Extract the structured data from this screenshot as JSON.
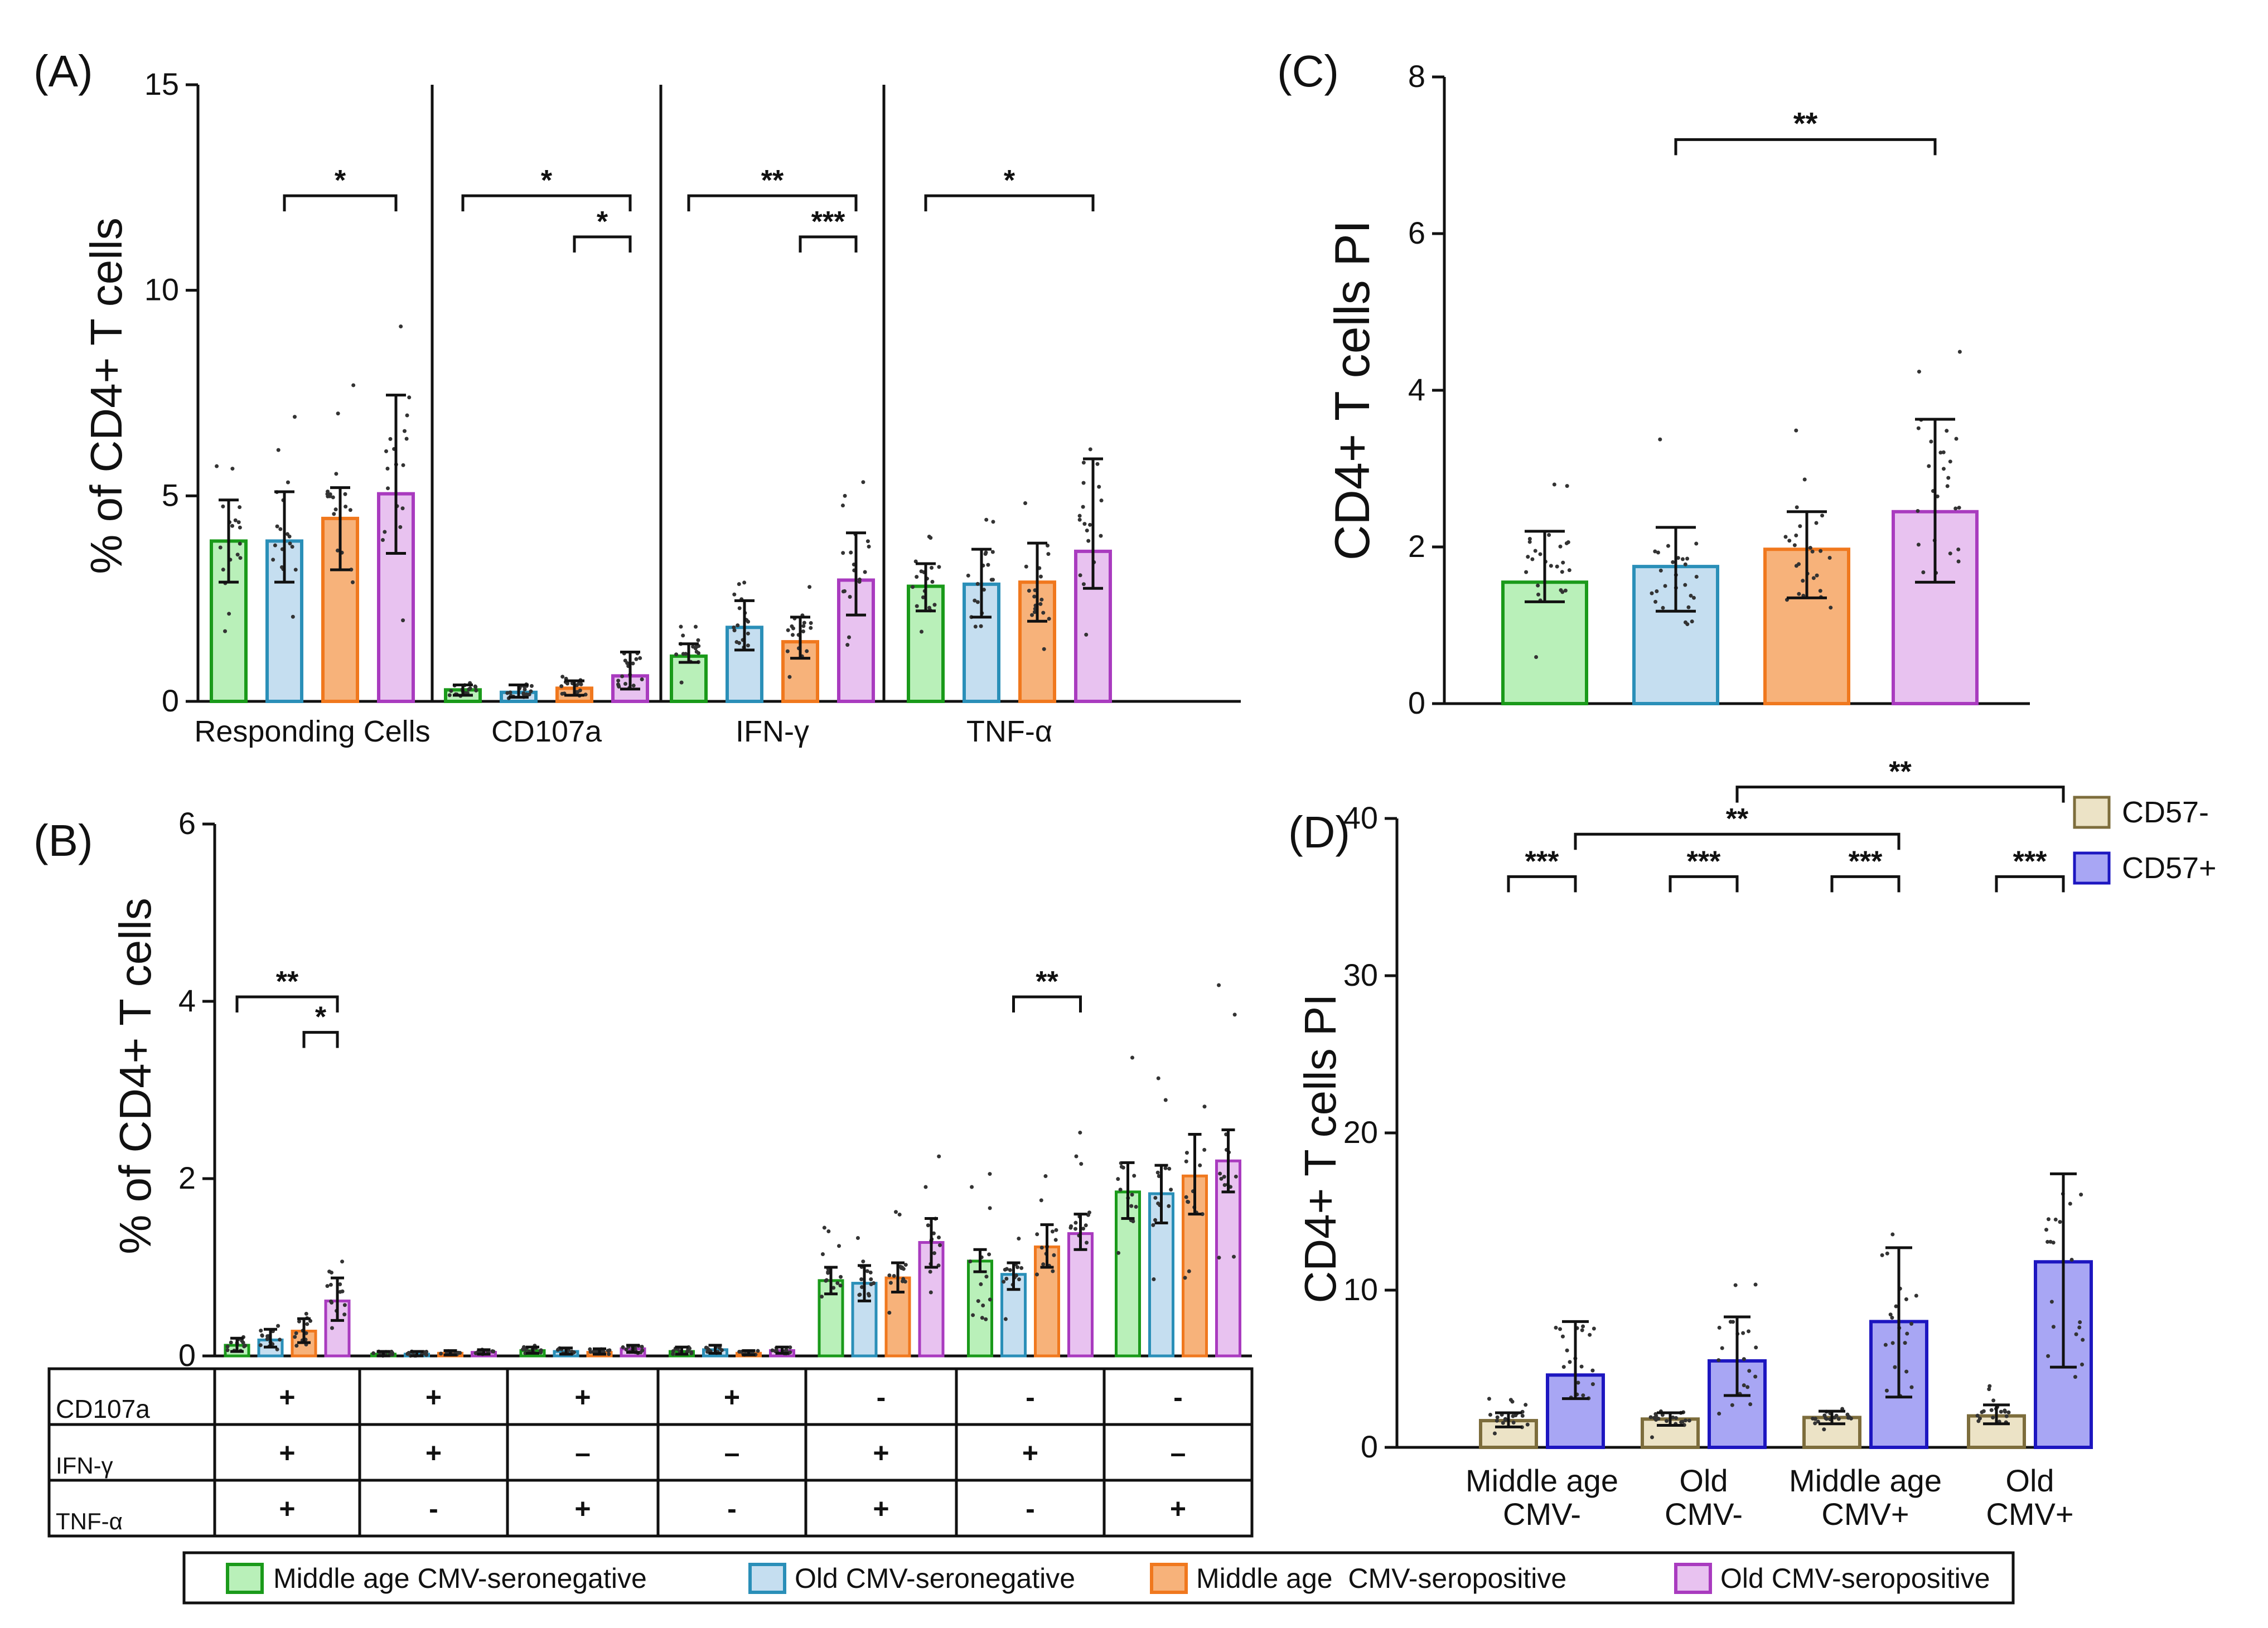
{
  "colors": {
    "ms": "#b9f0b9",
    "ms_e": "#1a9a1a",
    "os": "#c5def0",
    "os_e": "#2a8fb8",
    "mp": "#f7b27a",
    "mp_e": "#f0781e",
    "op": "#e8c2f0",
    "op_e": "#a93bbf",
    "neg": "#ece3c6",
    "neg_e": "#7d6d3c",
    "pos": "#a8a6f4",
    "pos_e": "#1d16c0"
  },
  "legend": {
    "items": [
      "Middle age CMV-seronegative",
      "Old CMV-seronegative",
      "Middle age  CMV-seropositive",
      "Old CMV-seropositive"
    ]
  },
  "chart_data": [
    {
      "id": "A",
      "type": "bar",
      "panel_label": "(A)",
      "ylabel": "% of CD4+ T cells",
      "ylim": [
        0,
        15
      ],
      "yticks": [
        0,
        5,
        10,
        15
      ],
      "groups": [
        {
          "label": "Responding Cells",
          "values": [
            3.9,
            3.9,
            4.45,
            5.05
          ],
          "err_low": [
            2.9,
            2.9,
            3.2,
            3.6
          ],
          "err_high": [
            4.9,
            5.1,
            5.2,
            7.45
          ]
        },
        {
          "label": "CD107a",
          "values": [
            0.28,
            0.22,
            0.32,
            0.62
          ],
          "err_low": [
            0.15,
            0.1,
            0.15,
            0.3
          ],
          "err_high": [
            0.4,
            0.4,
            0.5,
            1.2
          ]
        },
        {
          "label": "IFN-γ",
          "values": [
            1.1,
            1.8,
            1.45,
            2.95
          ],
          "err_low": [
            0.95,
            1.25,
            1.05,
            2.1
          ],
          "err_high": [
            1.4,
            2.45,
            2.05,
            4.1
          ]
        },
        {
          "label": "TNF-α",
          "values": [
            2.8,
            2.85,
            2.9,
            3.65
          ],
          "err_low": [
            2.2,
            2.05,
            1.95,
            2.75
          ],
          "err_high": [
            3.35,
            3.7,
            3.85,
            5.9
          ]
        }
      ],
      "significance": [
        {
          "group": 0,
          "from": 1,
          "to": 3,
          "y": 12.3,
          "label": "*"
        },
        {
          "group": 1,
          "from": 0,
          "to": 3,
          "y": 12.3,
          "label": "*"
        },
        {
          "group": 1,
          "from": 2,
          "to": 3,
          "y": 11.3,
          "label": "*"
        },
        {
          "group": 2,
          "from": 0,
          "to": 3,
          "y": 12.3,
          "label": "**"
        },
        {
          "group": 2,
          "from": 2,
          "to": 3,
          "y": 11.3,
          "label": "***"
        },
        {
          "group": 3,
          "from": 0,
          "to": 3,
          "y": 12.3,
          "label": "*"
        }
      ]
    },
    {
      "id": "B",
      "type": "bar",
      "panel_label": "(B)",
      "ylabel": "% of CD4+ T cells",
      "ylim": [
        0,
        6
      ],
      "yticks": [
        0,
        2,
        4,
        6
      ],
      "values": [
        [
          0.12,
          0.18,
          0.28,
          0.62
        ],
        [
          0.02,
          0.02,
          0.03,
          0.04
        ],
        [
          0.06,
          0.05,
          0.04,
          0.08
        ],
        [
          0.05,
          0.07,
          0.03,
          0.06
        ],
        [
          0.85,
          0.82,
          0.88,
          1.28
        ],
        [
          1.07,
          0.92,
          1.23,
          1.38
        ],
        [
          1.85,
          1.83,
          2.03,
          2.2
        ]
      ],
      "err_high": [
        [
          0.2,
          0.3,
          0.42,
          0.88
        ],
        [
          0.05,
          0.05,
          0.06,
          0.07
        ],
        [
          0.1,
          0.09,
          0.08,
          0.12
        ],
        [
          0.1,
          0.12,
          0.06,
          0.1
        ],
        [
          1.0,
          1.02,
          1.05,
          1.55
        ],
        [
          1.2,
          1.05,
          1.48,
          1.6
        ],
        [
          2.18,
          2.15,
          2.5,
          2.55
        ]
      ],
      "err_low": [
        [
          0.05,
          0.1,
          0.15,
          0.4
        ],
        [
          0.0,
          0.0,
          0.01,
          0.02
        ],
        [
          0.03,
          0.02,
          0.02,
          0.04
        ],
        [
          0.02,
          0.03,
          0.01,
          0.03
        ],
        [
          0.7,
          0.62,
          0.72,
          1.0
        ],
        [
          0.95,
          0.75,
          1.0,
          1.2
        ],
        [
          1.55,
          1.5,
          1.6,
          1.85
        ]
      ],
      "table": {
        "rows": [
          {
            "label": "CD107a",
            "values": [
              "+",
              "+",
              "+",
              "+",
              "-",
              "-",
              "-"
            ]
          },
          {
            "label": "IFN-γ",
            "values": [
              "+",
              "+",
              "–",
              "–",
              "+",
              "+",
              "–"
            ]
          },
          {
            "label": "TNF-α",
            "values": [
              "+",
              "-",
              "+",
              "-",
              "+",
              "-",
              "+"
            ]
          }
        ]
      },
      "significance": [
        {
          "group": 0,
          "from": 0,
          "to": 3,
          "y": 4.05,
          "label": "**"
        },
        {
          "group": 0,
          "from": 2,
          "to": 3,
          "y": 3.65,
          "label": "*"
        },
        {
          "group": 5,
          "from": 1,
          "to": 3,
          "y": 4.05,
          "label": "**"
        }
      ]
    },
    {
      "id": "C",
      "type": "bar",
      "panel_label": "(C)",
      "ylabel": "CD4+ T cells PI",
      "ylim": [
        0,
        8
      ],
      "yticks": [
        0,
        2,
        4,
        6,
        8
      ],
      "values": [
        1.55,
        1.75,
        1.97,
        2.45
      ],
      "err_low": [
        1.3,
        1.18,
        1.35,
        1.55
      ],
      "err_high": [
        2.2,
        2.25,
        2.45,
        3.63
      ],
      "significance": [
        {
          "from": 1,
          "to": 3,
          "y": 7.2,
          "label": "**"
        }
      ]
    },
    {
      "id": "D",
      "type": "bar",
      "panel_label": "(D)",
      "ylabel": "CD4+ T cells PI",
      "ylim": [
        0,
        40
      ],
      "yticks": [
        0,
        10,
        20,
        30,
        40
      ],
      "categories": [
        "Middle age\nCMV-",
        "Old\nCMV-",
        "Middle age\nCMV+",
        "Old\nCMV+"
      ],
      "series": [
        {
          "name": "CD57-",
          "values": [
            1.7,
            1.8,
            1.9,
            2.0
          ],
          "err_low": [
            1.3,
            1.4,
            1.5,
            1.5
          ],
          "err_high": [
            2.2,
            2.2,
            2.3,
            2.7
          ]
        },
        {
          "name": "CD57+",
          "values": [
            4.6,
            5.5,
            8.0,
            11.8
          ],
          "err_low": [
            3.1,
            3.3,
            3.2,
            5.1
          ],
          "err_high": [
            8.0,
            8.3,
            12.7,
            17.4
          ]
        }
      ],
      "significance": [
        {
          "x1": [
            0,
            0
          ],
          "x2": [
            0,
            1
          ],
          "y": 36.3,
          "label": "***"
        },
        {
          "x1": [
            1,
            0
          ],
          "x2": [
            1,
            1
          ],
          "y": 36.3,
          "label": "***"
        },
        {
          "x1": [
            2,
            0
          ],
          "x2": [
            2,
            1
          ],
          "y": 36.3,
          "label": "***"
        },
        {
          "x1": [
            3,
            0
          ],
          "x2": [
            3,
            1
          ],
          "y": 36.3,
          "label": "***"
        },
        {
          "x1": [
            0,
            1
          ],
          "x2": [
            2,
            1
          ],
          "y": 39.0,
          "label": "**"
        },
        {
          "x1": [
            1,
            1
          ],
          "x2": [
            3,
            1
          ],
          "y": 42.0,
          "label": "**"
        }
      ]
    }
  ]
}
